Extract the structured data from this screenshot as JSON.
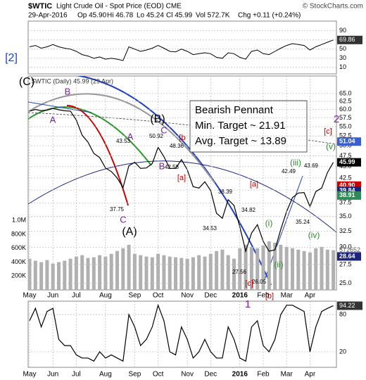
{
  "header": {
    "symbol": "$WTIC",
    "title": "Light Crude Oil - Spot Price (EOD) CME",
    "credit": "© StockCharts.com",
    "date": "29-Apr-2016",
    "quote": [
      "Op 45.90",
      "Hi 46.78",
      "Lo 45.24",
      "Cl 45.99",
      "Vol 572.7K",
      "Chg +0.11 (+0.24%)"
    ]
  },
  "chart_data": [
    {
      "type": "line",
      "color": "#000000",
      "values": [
        55,
        58,
        52,
        55,
        60,
        55,
        52,
        50,
        45,
        38,
        35,
        30,
        33,
        28,
        30,
        28,
        25,
        55,
        50,
        45,
        48,
        52,
        58,
        52,
        45,
        44,
        50,
        45,
        38,
        40,
        42,
        40,
        32,
        30,
        42,
        40,
        32,
        28,
        45,
        48,
        40,
        38,
        45,
        52,
        58,
        62,
        60,
        58,
        48,
        55,
        60,
        65,
        69.86
      ],
      "ylim": [
        -4,
        111
      ],
      "yticks": [
        90,
        70,
        50,
        30,
        10
      ],
      "value_label": 69.86
    },
    {
      "type": "line",
      "color": "#000000",
      "log": true,
      "legend": "$WTIC (Daily) 45.99 (29 Apr)",
      "categories": [
        "May",
        null,
        null,
        null,
        "Jun",
        null,
        null,
        null,
        "Jul",
        null,
        null,
        null,
        null,
        "Aug",
        null,
        null,
        null,
        null,
        "Sep",
        null,
        null,
        null,
        "Oct",
        null,
        null,
        null,
        null,
        "Nov",
        null,
        null,
        null,
        "Dec",
        null,
        null,
        null,
        null,
        "2016",
        null,
        null,
        null,
        "Feb",
        null,
        null,
        null,
        "Mar",
        null,
        null,
        null,
        "Apr",
        null,
        null,
        null,
        null
      ],
      "values": [
        59.5,
        60,
        59.6,
        59.8,
        60.3,
        59.9,
        59.6,
        59.5,
        56.9,
        52.7,
        50.9,
        48.1,
        47.1,
        44.7,
        43.9,
        42.5,
        40.5,
        45.2,
        46,
        44.6,
        44.7,
        45.7,
        49.6,
        47.3,
        44.6,
        44.6,
        46.6,
        44.3,
        40.7,
        40.4,
        41.7,
        39.9,
        35.6,
        34.7,
        38.1,
        37,
        33.2,
        29.4,
        32.2,
        33.6,
        30.9,
        29.4,
        29.6,
        32.8,
        35.9,
        38.5,
        39.4,
        39.5,
        36.8,
        39.7,
        40.4,
        43.7,
        45.99
      ],
      "ylim": [
        24.2,
        71
      ],
      "yticks": [
        {
          "value": 65,
          "label": "65.0"
        },
        62.5,
        {
          "value": 60,
          "label": "60.0"
        },
        57.5,
        {
          "value": 55,
          "label": "55.0"
        },
        52.5,
        {
          "value": 50,
          "label": "50.0"
        },
        47.5,
        {
          "value": 45,
          "label": "45.0"
        },
        42.5,
        {
          "value": 40,
          "label": "40.0"
        },
        37.5,
        {
          "value": 35,
          "label": "35.0"
        },
        32.5,
        {
          "value": 30,
          "label": "30.0"
        },
        27.5,
        {
          "value": 25,
          "label": "25.0"
        }
      ],
      "price_labels": [
        51.04,
        45.99,
        {
          "value": 40.9,
          "label": "40.90"
        },
        39.84,
        38.91,
        28.64
      ],
      "price_label_colors": [
        "#3a5fcd",
        "#000000",
        "#cc0000",
        "#1a237e",
        "#2e8b57",
        "#1a237e"
      ],
      "volume": {
        "color": "#b0b0b0",
        "values": [
          450000,
          420000,
          400000,
          430000,
          380000,
          400000,
          420000,
          450000,
          480000,
          500000,
          460000,
          470000,
          500000,
          480000,
          520000,
          560000,
          600000,
          650000,
          520000,
          500000,
          480000,
          470000,
          520000,
          500000,
          480000,
          470000,
          460000,
          450000,
          470000,
          500000,
          480000,
          520000,
          560000,
          580000,
          500000,
          450000,
          600000,
          650000,
          620000,
          600000,
          640000,
          700000,
          680000,
          650000,
          620000,
          600000,
          580000,
          560000,
          540000,
          600000,
          620000,
          580000,
          572652
        ],
        "ylim": [
          0,
          3080000
        ],
        "yticks": [
          {
            "value": 1000000,
            "label": "1.0M"
          },
          {
            "value": 800000,
            "label": "800K"
          },
          {
            "value": 600000,
            "label": "600K"
          },
          {
            "value": 400000,
            "label": "400K"
          },
          {
            "value": 200000,
            "label": "200K"
          }
        ],
        "value_label": 572652
      },
      "note": [
        "Bearish Pennant",
        "Min. Target ~ 21.91",
        "Avg. Target ~ 13.89"
      ],
      "annotations": [
        {
          "text": "(C)",
          "color": "#000000"
        },
        {
          "text": "B",
          "color": "#7b1fa2"
        },
        {
          "text": "A",
          "color": "#7b1fa2"
        },
        {
          "text": "43.53",
          "color": "#000000"
        },
        {
          "text": "A",
          "color": "#7b1fa2"
        },
        {
          "text": "(B)",
          "color": "#000000"
        },
        {
          "text": "C",
          "color": "#7b1fa2"
        },
        {
          "text": "50.92",
          "color": "#000000"
        },
        {
          "text": "[b",
          "color": "#cc0000"
        },
        {
          "text": "48.36",
          "color": "#000000"
        },
        {
          "text": "B",
          "color": "#7b1fa2"
        },
        {
          "text": "42.58",
          "color": "#000000"
        },
        {
          "text": "[a]",
          "color": "#cc0000"
        },
        {
          "text": "37.75",
          "color": "#000000"
        },
        {
          "text": "C",
          "color": "#7b1fa2"
        },
        {
          "text": "(A)",
          "color": "#000000"
        },
        {
          "text": "38.39",
          "color": "#000000"
        },
        {
          "text": "34.53",
          "color": "#000000"
        },
        {
          "text": "[a]",
          "color": "#cc0000"
        },
        {
          "text": "34.82",
          "color": "#000000"
        },
        {
          "text": "(i)",
          "color": "#2e8b2e"
        },
        {
          "text": "27.56",
          "color": "#000000"
        },
        {
          "text": "(ii)",
          "color": "#2e8b2e"
        },
        {
          "text": "26.05",
          "color": "#000000"
        },
        {
          "text": "[c]",
          "color": "#cc0000"
        },
        {
          "text": "[b]",
          "color": "#cc0000"
        },
        {
          "text": "1",
          "color": "#7b1fa2"
        },
        {
          "text": "(iii)",
          "color": "#2e8b2e"
        },
        {
          "text": "42.49",
          "color": "#000000"
        },
        {
          "text": "43.69",
          "color": "#000000"
        },
        {
          "text": "35.24",
          "color": "#000000"
        },
        {
          "text": "(iv)",
          "color": "#2e8b2e"
        },
        {
          "text": "(v)",
          "color": "#2e8b2e"
        },
        {
          "text": "[c]",
          "color": "#cc0000"
        },
        {
          "text": "2",
          "color": "#7b1fa2"
        },
        {
          "text": "[2]",
          "color": "#1f3fbf"
        }
      ]
    },
    {
      "type": "line",
      "color": "#000000",
      "values": [
        70,
        90,
        60,
        85,
        90,
        40,
        30,
        30,
        15,
        10,
        10,
        5,
        20,
        10,
        15,
        10,
        5,
        80,
        60,
        30,
        40,
        60,
        95,
        70,
        20,
        15,
        60,
        40,
        10,
        20,
        40,
        20,
        10,
        10,
        60,
        40,
        10,
        5,
        60,
        70,
        30,
        20,
        40,
        80,
        95,
        95,
        90,
        85,
        20,
        60,
        85,
        90,
        94.22
      ],
      "ylim": [
        -5,
        101.5
      ],
      "yticks": [
        80,
        20
      ],
      "value_label": 94.22
    }
  ]
}
